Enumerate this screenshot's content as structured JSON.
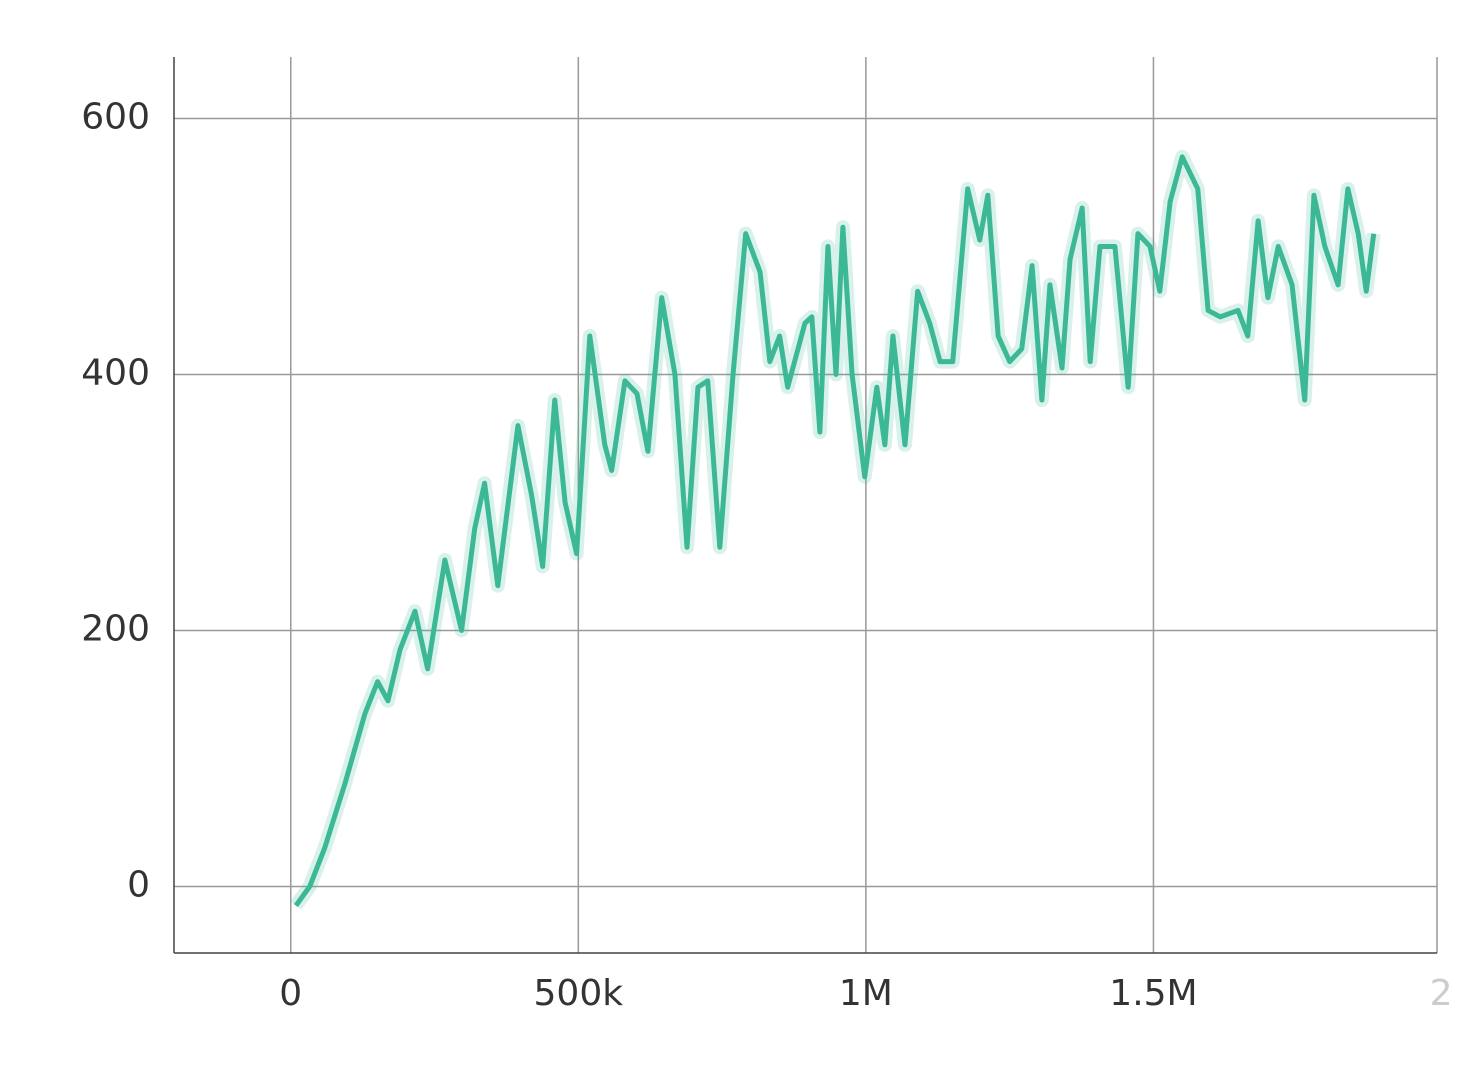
{
  "chart_data": {
    "type": "line",
    "x": [
      9000,
      33000,
      59000,
      94000,
      129000,
      151000,
      169000,
      190000,
      216000,
      238000,
      268000,
      297000,
      320000,
      337000,
      360000,
      395000,
      419000,
      438000,
      459000,
      477000,
      497000,
      520000,
      546000,
      558000,
      581000,
      602000,
      621000,
      645000,
      668000,
      689000,
      708000,
      725000,
      746000,
      769000,
      791000,
      816000,
      833000,
      850000,
      864000,
      894000,
      906000,
      920000,
      934000,
      948000,
      960000,
      976000,
      998000,
      1019000,
      1033000,
      1047000,
      1068000,
      1090000,
      1111000,
      1129000,
      1151000,
      1177000,
      1198000,
      1212000,
      1230000,
      1250000,
      1271000,
      1289000,
      1306000,
      1320000,
      1341000,
      1355000,
      1376000,
      1390000,
      1407000,
      1433000,
      1456000,
      1473000,
      1494000,
      1511000,
      1529000,
      1550000,
      1577000,
      1595000,
      1616000,
      1647000,
      1664000,
      1682000,
      1699000,
      1717000,
      1741000,
      1763000,
      1779000,
      1798000,
      1821000,
      1838000,
      1856000,
      1870000,
      1883000
    ],
    "series": [
      {
        "color": "#3db896",
        "values": [
          -15,
          0,
          30,
          80,
          135,
          160,
          145,
          185,
          215,
          170,
          255,
          200,
          280,
          315,
          235,
          360,
          305,
          250,
          380,
          300,
          260,
          430,
          345,
          325,
          395,
          385,
          340,
          460,
          400,
          265,
          390,
          395,
          265,
          400,
          510,
          480,
          410,
          430,
          390,
          440,
          445,
          355,
          500,
          400,
          515,
          400,
          320,
          390,
          345,
          430,
          345,
          465,
          440,
          410,
          410,
          545,
          505,
          540,
          430,
          410,
          420,
          485,
          380,
          470,
          405,
          490,
          530,
          410,
          500,
          500,
          390,
          510,
          500,
          465,
          535,
          570,
          545,
          450,
          445,
          450,
          430,
          520,
          460,
          500,
          470,
          380,
          540,
          500,
          470,
          545,
          510,
          465,
          510
        ]
      }
    ],
    "xlim": [
      -203000,
      1993000
    ],
    "ylim": [
      -52,
      648
    ],
    "xticks": [
      0,
      {
        "value": 500000,
        "label": "500k"
      },
      {
        "value": 1000000,
        "label": "1M"
      },
      {
        "value": 1500000,
        "label": "1.5M"
      },
      {
        "value": 2000000,
        "label": "2"
      }
    ],
    "yticks": [
      0,
      200,
      400,
      600
    ],
    "grid": true
  }
}
